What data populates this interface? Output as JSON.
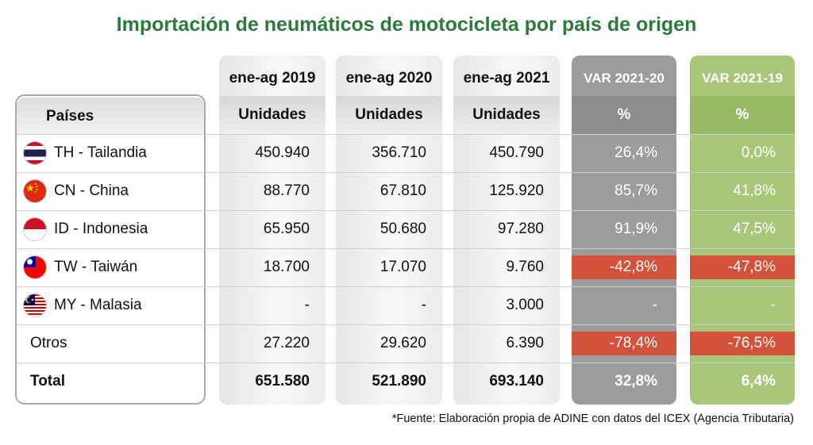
{
  "chart_data": {
    "type": "table",
    "title": "Importación de neumáticos de motocicleta por país de origen",
    "source": "*Fuente: Elaboración propia de ADINE con datos del ICEX (Agencia Tributaria)",
    "columns": [
      {
        "period": "ene-ag 2019",
        "unit": "Unidades"
      },
      {
        "period": "ene-ag 2020",
        "unit": "Unidades"
      },
      {
        "period": "ene-ag 2021",
        "unit": "Unidades"
      },
      {
        "period": "VAR 2021-20",
        "unit": "%"
      },
      {
        "period": "VAR 2021-19",
        "unit": "%"
      }
    ],
    "country_header": "Países",
    "rows": [
      {
        "country": "TH - Tailandia",
        "flag": "thailand-flag-icon",
        "values": [
          "450.940",
          "356.710",
          "450.790",
          "26,4%",
          "0,0%"
        ]
      },
      {
        "country": "CN - China",
        "flag": "china-flag-icon",
        "values": [
          "88.770",
          "67.810",
          "125.920",
          "85,7%",
          "41,8%"
        ]
      },
      {
        "country": "ID - Indonesia",
        "flag": "indonesia-flag-icon",
        "values": [
          "65.950",
          "50.680",
          "97.280",
          "91,9%",
          "47,5%"
        ]
      },
      {
        "country": "TW - Taiwán",
        "flag": "taiwan-flag-icon",
        "values": [
          "18.700",
          "17.070",
          "9.760",
          "-42,8%",
          "-47,8%"
        ]
      },
      {
        "country": "MY - Malasia",
        "flag": "malaysia-flag-icon",
        "values": [
          "-",
          "-",
          "3.000",
          "-",
          "-"
        ]
      },
      {
        "country": "Otros",
        "flag": "",
        "values": [
          "27.220",
          "29.620",
          "6.390",
          "-78,4%",
          "-76,5%"
        ]
      }
    ],
    "total": {
      "label": "Total",
      "values": [
        "651.580",
        "521.890",
        "693.140",
        "32,8%",
        "6,4%"
      ]
    }
  },
  "colors": {
    "title": "#2b7a3b",
    "var_2021_20_panel": "#9c9c9c",
    "var_2021_19_panel": "#a9c77a",
    "negative_highlight": "#d2523b"
  }
}
